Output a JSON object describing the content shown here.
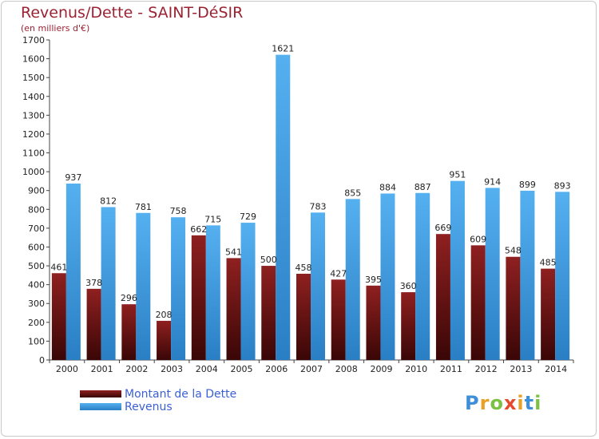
{
  "chart_data": {
    "type": "bar",
    "title": "Revenus/Dette - SAINT-DéSIR",
    "subtitle": "(en milliers d'€)",
    "categories": [
      "2000",
      "2001",
      "2002",
      "2003",
      "2004",
      "2005",
      "2006",
      "2007",
      "2008",
      "2009",
      "2010",
      "2011",
      "2012",
      "2013",
      "2014"
    ],
    "series": [
      {
        "name": "Montant de la Dette",
        "color": "#8b1a1a",
        "values": [
          461,
          378,
          296,
          208,
          662,
          541,
          500,
          458,
          427,
          395,
          360,
          669,
          609,
          548,
          485
        ]
      },
      {
        "name": "Revenus",
        "color": "#3d9ee6",
        "values": [
          937,
          812,
          781,
          758,
          715,
          729,
          1621,
          783,
          855,
          884,
          887,
          951,
          914,
          899,
          893
        ]
      }
    ],
    "ylim": [
      0,
      1700
    ],
    "yticks": [
      0,
      100,
      200,
      300,
      400,
      500,
      600,
      700,
      800,
      900,
      1000,
      1100,
      1200,
      1300,
      1400,
      1500,
      1600,
      1700
    ],
    "grid": false,
    "legend_position": "bottom-left"
  },
  "logo": {
    "text": "Proxiti",
    "letters": [
      {
        "ch": "P",
        "color": "#3c8fd8"
      },
      {
        "ch": "r",
        "color": "#e8a126"
      },
      {
        "ch": "o",
        "color": "#7cc242"
      },
      {
        "ch": "x",
        "color": "#e64a2e"
      },
      {
        "ch": "i",
        "color": "#e8a126"
      },
      {
        "ch": "t",
        "color": "#3c8fd8"
      },
      {
        "ch": "i",
        "color": "#7cc242"
      }
    ]
  }
}
